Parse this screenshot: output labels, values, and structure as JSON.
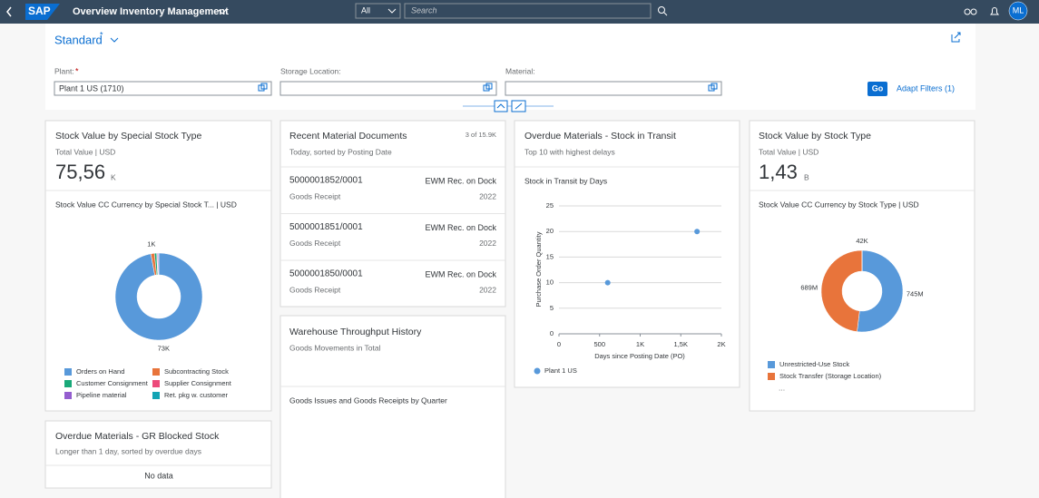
{
  "shell": {
    "logo": "SAP",
    "title": "Overview Inventory Management",
    "search_scope": "All",
    "search_placeholder": "Search",
    "avatar": "ML"
  },
  "filterbar": {
    "variant": "Standard",
    "variant_modified": "*",
    "fields": [
      {
        "label": "Plant:",
        "required": "*",
        "value": "Plant 1 US (1710)"
      },
      {
        "label": "Storage Location:"
      },
      {
        "label": "Material:"
      }
    ],
    "go": "Go",
    "adapt": "Adapt Filters (1)"
  },
  "cards": [
    {
      "title": "Stock Value by Special Stock Type",
      "subtitle": "Total Value | USD",
      "kpi": "75,56",
      "kpi_unit": "K",
      "chart": {
        "type": "donut",
        "title": "Stock Value CC Currency by Special Stock T...  | USD",
        "categories": [
          "Orders on Hand",
          "Subcontracting Stock",
          "Customer Consignment",
          "Supplier Consignment",
          "Pipeline material",
          "Ret. pkg w. customer"
        ],
        "values": [
          73,
          1,
          0.6,
          0.2,
          0.3,
          0.1
        ],
        "value_labels": [
          "73K",
          "1K",
          null,
          null,
          null,
          null
        ],
        "colors": [
          "#5899da",
          "#e8743b",
          "#19a979",
          "#ed4a7b",
          "#945ecf",
          "#13a4b4"
        ]
      }
    },
    {
      "title": "Recent Material Documents",
      "count": "3 of 15.9K",
      "subtitle": "Today, sorted by Posting Date",
      "items": [
        {
          "id": "5000001852/0001",
          "type": "Goods Receipt",
          "desc": "EWM Rec. on Dock",
          "year": "2022"
        },
        {
          "id": "5000001851/0001",
          "type": "Goods Receipt",
          "desc": "EWM Rec. on Dock",
          "year": "2022"
        },
        {
          "id": "5000001850/0001",
          "type": "Goods Receipt",
          "desc": "EWM Rec. on Dock",
          "year": "2022"
        }
      ]
    },
    {
      "title": "Warehouse Throughput History",
      "subtitle": "Goods Movements in Total",
      "chart_title": "Goods Issues and Goods Receipts by Quarter"
    },
    {
      "title": "Overdue Materials - Stock in Transit",
      "subtitle": "Top 10 with highest delays",
      "chart": {
        "type": "scatter",
        "title": "Stock in Transit by Days",
        "x_label": "Days since Posting Date (PO)",
        "y_label": "Purchase Order Quantity",
        "xlim": [
          0,
          2000
        ],
        "xticks": [
          0,
          500,
          {
            "value": 1000,
            "label": "1K"
          },
          {
            "value": 1500,
            "label": "1,5K"
          },
          {
            "value": 2000,
            "label": "2K"
          }
        ],
        "ylim": [
          0,
          25
        ],
        "yticks": [
          0,
          5,
          10,
          15,
          20,
          25
        ],
        "grid": true,
        "series": [
          {
            "name": "Plant 1 US",
            "color": "#5899da",
            "x": [
              600,
              1700
            ],
            "values": [
              10,
              20
            ]
          }
        ]
      }
    },
    {
      "title": "Stock Value by Stock Type",
      "subtitle": "Total Value | USD",
      "kpi": "1,43",
      "kpi_unit": "B",
      "chart": {
        "type": "donut",
        "title": "Stock Value CC Currency by Stock Type | USD",
        "categories": [
          "Unrestricted-Use Stock",
          "Stock Transfer (Storage Location)",
          null
        ],
        "values": [
          745,
          689,
          0.042
        ],
        "value_labels": [
          "745M",
          "689M",
          "42K"
        ],
        "colors": [
          "#5899da",
          "#e8743b",
          "#19a979"
        ],
        "legend_more": "..."
      }
    },
    {
      "title": "Overdue Materials - GR Blocked Stock",
      "subtitle": "Longer than 1 day, sorted by overdue days",
      "empty": "No data"
    }
  ]
}
